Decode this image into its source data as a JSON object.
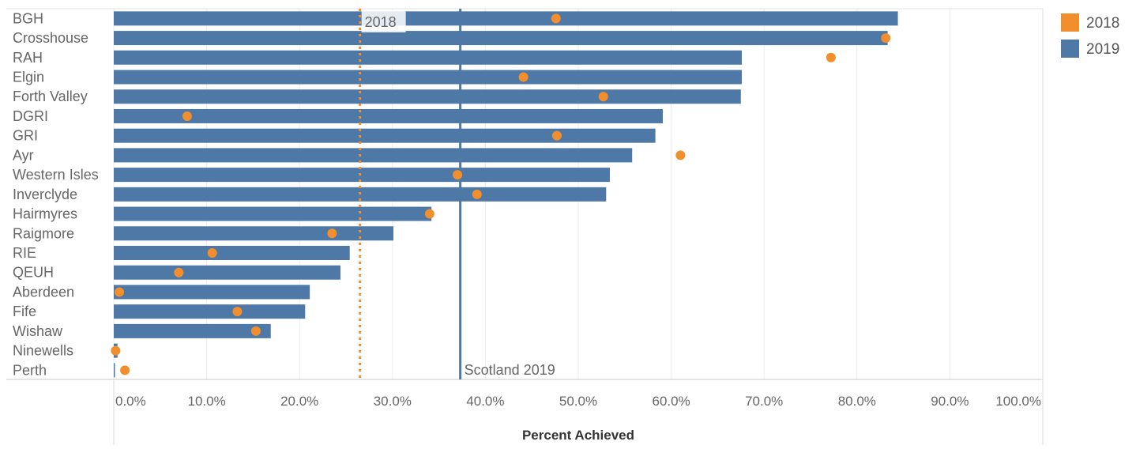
{
  "chart_data": {
    "type": "bar",
    "xlabel": "Percent Achieved",
    "xlim": [
      0,
      100
    ],
    "xticks": [
      "0.0%",
      "10.0%",
      "20.0%",
      "30.0%",
      "40.0%",
      "50.0%",
      "60.0%",
      "70.0%",
      "80.0%",
      "90.0%",
      "100.0%"
    ],
    "categories": [
      "BGH",
      "Crosshouse",
      "RAH",
      "Elgin",
      "Forth Valley",
      "DGRI",
      "GRI",
      "Ayr",
      "Western Isles",
      "Inverclyde",
      "Hairmyres",
      "Raigmore",
      "RIE",
      "QEUH",
      "Aberdeen",
      "Fife",
      "Wishaw",
      "Ninewells",
      "Perth"
    ],
    "series": [
      {
        "name": "2019",
        "mark": "bar",
        "color": "#4e79a7",
        "values": [
          84.4,
          83.3,
          67.6,
          67.6,
          67.5,
          59.1,
          58.3,
          55.8,
          53.4,
          53.0,
          34.2,
          30.1,
          25.4,
          24.4,
          21.1,
          20.6,
          16.9,
          0.4,
          0.1
        ]
      },
      {
        "name": "2018",
        "mark": "dot",
        "color": "#f28e2b",
        "values": [
          47.6,
          83.1,
          77.2,
          44.1,
          52.7,
          7.9,
          47.7,
          61.0,
          37.0,
          39.1,
          34.0,
          23.5,
          10.6,
          7.0,
          0.6,
          13.3,
          15.3,
          0.2,
          1.2
        ]
      }
    ],
    "reference_lines": [
      {
        "label": "2018",
        "value": 26.5,
        "style": "dotted",
        "color": "#f28e2b"
      },
      {
        "label": "Scotland 2019",
        "value": 37.3,
        "style": "solid",
        "color": "#4e79a7"
      }
    ],
    "legend": {
      "position": "top-right",
      "items": [
        {
          "label": "2018",
          "color": "#f28e2b"
        },
        {
          "label": "2019",
          "color": "#4e79a7"
        }
      ]
    },
    "grid": true
  }
}
